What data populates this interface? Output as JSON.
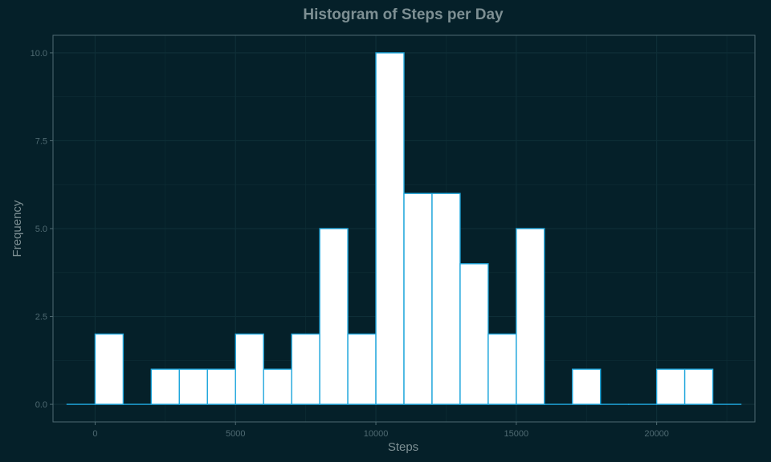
{
  "chart_data": {
    "type": "bar",
    "title": "Histogram of Steps per Day",
    "xlabel": "Steps",
    "ylabel": "Frequency",
    "xlim": [
      -1500,
      23500
    ],
    "ylim": [
      -0.5,
      10.5
    ],
    "x_ticks": [
      0,
      5000,
      10000,
      15000,
      20000
    ],
    "x_tick_labels": [
      "0",
      "5000",
      "10000",
      "15000",
      "20000"
    ],
    "y_ticks": [
      0,
      2.5,
      5,
      7.5,
      10
    ],
    "y_tick_labels": [
      "0.0",
      "2.5",
      "5.0",
      "7.5",
      "10.0"
    ],
    "bin_width": 1000,
    "bin_starts": [
      -1000,
      0,
      1000,
      2000,
      3000,
      4000,
      5000,
      6000,
      7000,
      8000,
      9000,
      10000,
      11000,
      12000,
      13000,
      14000,
      15000,
      16000,
      17000,
      18000,
      19000,
      20000,
      21000,
      22000
    ],
    "values": [
      0,
      2,
      0,
      1,
      1,
      1,
      2,
      1,
      2,
      5,
      2,
      10,
      6,
      6,
      4,
      2,
      5,
      0,
      1,
      0,
      0,
      1,
      1,
      0
    ],
    "grid": true,
    "colors": {
      "background": "#052029",
      "bar_fill": "#ffffff",
      "bar_outline": "#1fa6dc",
      "grid": "#0e2e37",
      "panel_border": "#4f6a72"
    }
  }
}
